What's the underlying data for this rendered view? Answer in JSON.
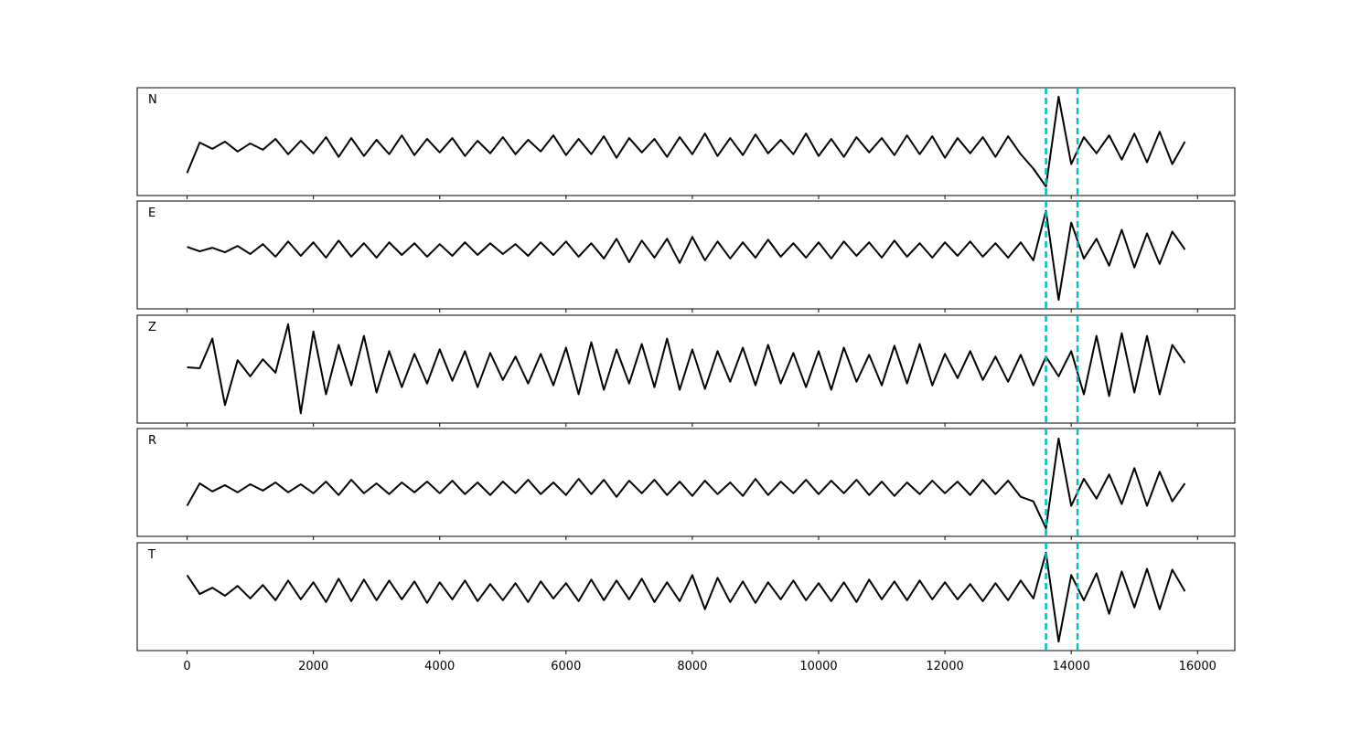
{
  "chart_data": {
    "type": "line",
    "x": [
      0,
      200,
      400,
      600,
      800,
      1000,
      1200,
      1400,
      1600,
      1800,
      2000,
      2200,
      2400,
      2600,
      2800,
      3000,
      3200,
      3400,
      3600,
      3800,
      4000,
      4200,
      4400,
      4600,
      4800,
      5000,
      5200,
      5400,
      5600,
      5800,
      6000,
      6200,
      6400,
      6600,
      6800,
      7000,
      7200,
      7400,
      7600,
      7800,
      8000,
      8200,
      8400,
      8600,
      8800,
      9000,
      9200,
      9400,
      9600,
      9800,
      10000,
      10200,
      10400,
      10600,
      10800,
      11000,
      11200,
      11400,
      11600,
      11800,
      12000,
      12200,
      12400,
      12600,
      12800,
      13000,
      13200,
      13400,
      13600,
      13800,
      14000,
      14200,
      14400,
      14600,
      14800,
      15000,
      15200,
      15400,
      15600,
      15800
    ],
    "xlim": [
      -790,
      16590
    ],
    "xticks": [
      0,
      2000,
      4000,
      6000,
      8000,
      10000,
      12000,
      14000,
      16000
    ],
    "vlines": [
      13600,
      14100
    ],
    "vline_color": "#00bfbf",
    "series": [
      {
        "name": "N",
        "color": "#000000",
        "ylim": [
          -55,
          65
        ],
        "values": [
          -30,
          4,
          -3,
          5,
          -6,
          3,
          -4,
          8,
          -9,
          6,
          -8,
          10,
          -12,
          9,
          -11,
          7,
          -9,
          12,
          -10,
          8,
          -7,
          9,
          -11,
          6,
          -8,
          10,
          -9,
          7,
          -6,
          12,
          -10,
          8,
          -9,
          11,
          -13,
          9,
          -7,
          8,
          -12,
          10,
          -9,
          14,
          -11,
          9,
          -10,
          13,
          -8,
          7,
          -9,
          14,
          -11,
          8,
          -12,
          10,
          -7,
          9,
          -10,
          12,
          -9,
          11,
          -13,
          9,
          -8,
          10,
          -12,
          11,
          -9,
          -25,
          -45,
          55,
          -20,
          10,
          -8,
          12,
          -15,
          14,
          -18,
          16,
          -20,
          5
        ]
      },
      {
        "name": "E",
        "color": "#000000",
        "ylim": [
          -66,
          54
        ],
        "values": [
          3,
          -2,
          2,
          -3,
          4,
          -5,
          6,
          -8,
          9,
          -7,
          8,
          -9,
          10,
          -8,
          7,
          -9,
          8,
          -6,
          7,
          -8,
          6,
          -7,
          8,
          -6,
          7,
          -5,
          6,
          -7,
          8,
          -6,
          9,
          -8,
          7,
          -10,
          12,
          -14,
          10,
          -9,
          12,
          -15,
          14,
          -12,
          9,
          -10,
          8,
          -9,
          11,
          -8,
          7,
          -9,
          8,
          -10,
          9,
          -7,
          8,
          -9,
          10,
          -8,
          7,
          -9,
          8,
          -7,
          9,
          -8,
          7,
          -9,
          8,
          -12,
          43,
          -56,
          30,
          -10,
          12,
          -18,
          22,
          -20,
          18,
          -16,
          20,
          0
        ]
      },
      {
        "name": "Z",
        "color": "#000000",
        "ylim": [
          -62,
          58
        ],
        "values": [
          0,
          -1,
          32,
          -42,
          8,
          -10,
          9,
          -6,
          48,
          -51,
          40,
          -30,
          25,
          -20,
          35,
          -28,
          18,
          -22,
          15,
          -18,
          20,
          -15,
          18,
          -22,
          16,
          -14,
          12,
          -18,
          15,
          -20,
          22,
          -30,
          28,
          -25,
          20,
          -18,
          26,
          -22,
          32,
          -25,
          20,
          -24,
          18,
          -16,
          22,
          -20,
          25,
          -18,
          16,
          -22,
          18,
          -25,
          22,
          -16,
          14,
          -20,
          24,
          -18,
          26,
          -20,
          15,
          -12,
          18,
          -14,
          12,
          -16,
          14,
          -20,
          12,
          -10,
          18,
          -30,
          35,
          -32,
          38,
          -28,
          35,
          -30,
          25,
          5
        ]
      },
      {
        "name": "R",
        "color": "#000000",
        "ylim": [
          -54,
          66
        ],
        "values": [
          -20,
          5,
          -4,
          3,
          -5,
          4,
          -3,
          6,
          -5,
          4,
          -6,
          7,
          -8,
          9,
          -6,
          5,
          -7,
          6,
          -5,
          7,
          -6,
          8,
          -7,
          6,
          -8,
          7,
          -6,
          9,
          -7,
          6,
          -8,
          10,
          -7,
          9,
          -10,
          8,
          -6,
          9,
          -8,
          7,
          -9,
          8,
          -7,
          6,
          -9,
          10,
          -8,
          7,
          -6,
          9,
          -7,
          8,
          -6,
          9,
          -8,
          7,
          -9,
          6,
          -7,
          8,
          -6,
          7,
          -8,
          9,
          -7,
          8,
          -10,
          -15,
          -45,
          55,
          -20,
          10,
          -12,
          15,
          -18,
          22,
          -20,
          18,
          -15,
          5
        ]
      },
      {
        "name": "T",
        "color": "#000000",
        "ylim": [
          -66,
          54
        ],
        "values": [
          18,
          -3,
          4,
          -5,
          6,
          -8,
          7,
          -10,
          12,
          -9,
          10,
          -12,
          14,
          -11,
          13,
          -10,
          12,
          -9,
          11,
          -13,
          10,
          -9,
          12,
          -11,
          8,
          -10,
          9,
          -12,
          11,
          -8,
          9,
          -11,
          13,
          -10,
          12,
          -9,
          14,
          -12,
          10,
          -11,
          18,
          -20,
          15,
          -12,
          11,
          -13,
          10,
          -9,
          12,
          -10,
          9,
          -11,
          10,
          -12,
          13,
          -9,
          11,
          -10,
          12,
          -9,
          10,
          -9,
          8,
          -11,
          9,
          -10,
          12,
          -8,
          43,
          -56,
          18,
          -10,
          20,
          -25,
          22,
          -18,
          25,
          -20,
          24,
          0
        ]
      }
    ]
  }
}
